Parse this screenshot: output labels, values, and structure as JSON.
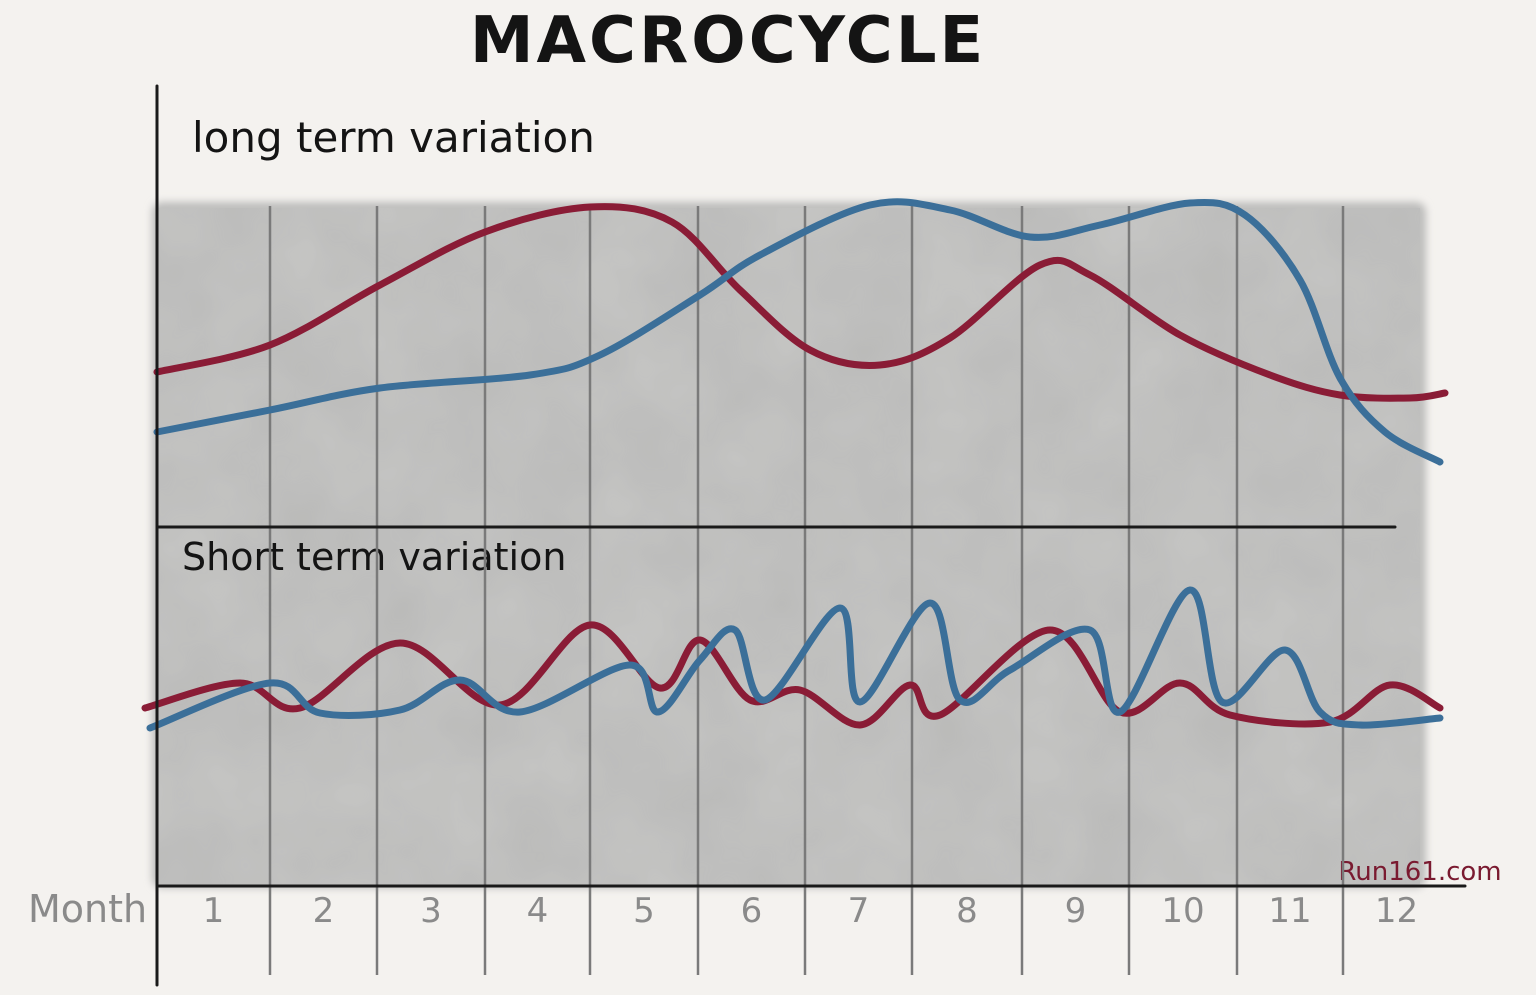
{
  "title": "MACROCYCLE",
  "panels": [
    {
      "label": "long term variation"
    },
    {
      "label": "Short term variation"
    }
  ],
  "x_axis": {
    "label": "Month",
    "months": [
      "1",
      "2",
      "3",
      "4",
      "5",
      "6",
      "7",
      "8",
      "9",
      "10",
      "11",
      "12"
    ]
  },
  "credit": "Run161.com"
}
